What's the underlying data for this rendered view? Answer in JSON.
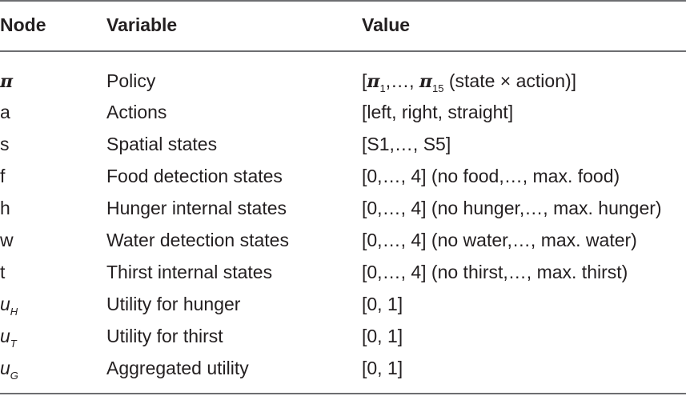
{
  "headers": {
    "node": "Node",
    "variable": "Variable",
    "value": "Value"
  },
  "rows": [
    {
      "node": "π",
      "variable": "Policy",
      "value": {
        "open": "[",
        "pi1": "π",
        "sub1": "1",
        "mid": ",…, ",
        "pi2": "π",
        "sub2": "15",
        "close": " (state × action)]"
      }
    },
    {
      "node": "a",
      "variable": "Actions",
      "value": "[left, right, straight]"
    },
    {
      "node": "s",
      "variable": "Spatial states",
      "value": "[S1,…, S5]"
    },
    {
      "node": "f",
      "variable": "Food detection states",
      "value": "[0,…, 4] (no food,…, max. food)"
    },
    {
      "node": "h",
      "variable": "Hunger internal states",
      "value": "[0,…, 4] (no hunger,…, max. hunger)"
    },
    {
      "node": "w",
      "variable": "Water detection states",
      "value": "[0,…, 4] (no water,…, max. water)"
    },
    {
      "node": "t",
      "variable": "Thirst internal states",
      "value": "[0,…, 4] (no thirst,…, max. thirst)"
    },
    {
      "node": {
        "base": "u",
        "sub": "H"
      },
      "variable": "Utility for hunger",
      "value": "[0, 1]"
    },
    {
      "node": {
        "base": "u",
        "sub": "T"
      },
      "variable": "Utility for thirst",
      "value": "[0, 1]"
    },
    {
      "node": {
        "base": "u",
        "sub": "G"
      },
      "variable": "Aggregated utility",
      "value": "[0, 1]"
    }
  ]
}
